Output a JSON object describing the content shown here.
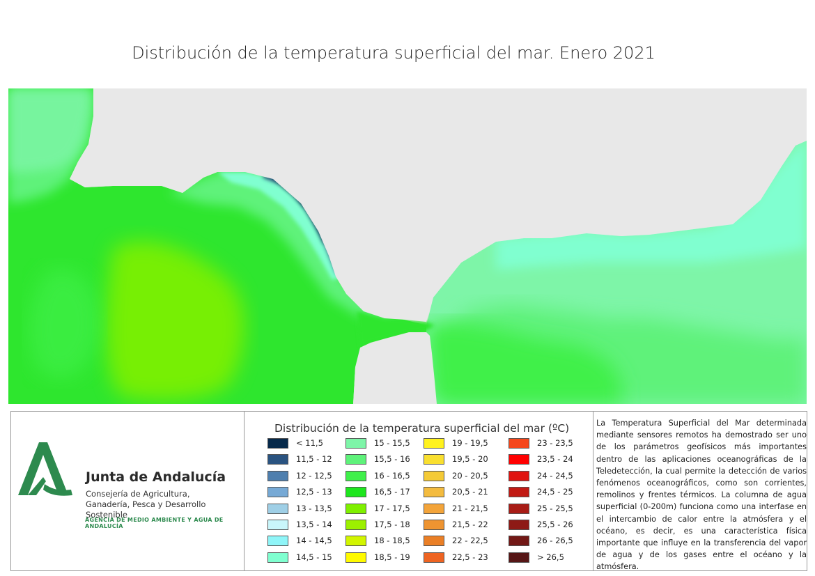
{
  "title": "Distribución de la temperatura superficial del mar. Enero 2021",
  "colors": {
    "land": "#e8e8e8",
    "sea_16_5_17": "#2ee62e",
    "sea_17_17_5": "#7ff000",
    "sea_16_16_5": "#3ff04a",
    "sea_15_5_16": "#5ef27a",
    "sea_15_15_5": "#7ef5a8",
    "sea_14_5_15": "#80ffd0",
    "cold_coast": "#28507a"
  },
  "logo": {
    "icon": "junta-andalucia-logo-icon",
    "org_name": "Junta de Andalucía",
    "department": "Consejería de Agricultura, Ganadería, Pesca y Desarrollo Sostenible",
    "agency": "AGENCIA DE MEDIO AMBIENTE Y AGUA DE ANDALUCÍA"
  },
  "legend": {
    "title": "Distribución de la temperatura superficial del mar (ºC)",
    "columns": [
      [
        {
          "label": "< 11,5",
          "color": "#06294a"
        },
        {
          "label": "11,5 - 12",
          "color": "#2a5380"
        },
        {
          "label": "12 - 12,5",
          "color": "#4f7fae"
        },
        {
          "label": "12,5 - 13",
          "color": "#76a9d5"
        },
        {
          "label": "13 - 13,5",
          "color": "#9fcfe6"
        },
        {
          "label": "13,5 - 14",
          "color": "#c9f6fb"
        },
        {
          "label": "14 - 14,5",
          "color": "#8ff5f8"
        },
        {
          "label": "14,5 - 15",
          "color": "#80ffd0"
        }
      ],
      [
        {
          "label": "15 - 15,5",
          "color": "#7ef5a8"
        },
        {
          "label": "15,5 - 16",
          "color": "#5ef27a"
        },
        {
          "label": "16 - 16,5",
          "color": "#3ff04a"
        },
        {
          "label": "16,5 - 17",
          "color": "#1ee61e"
        },
        {
          "label": "17 - 17,5",
          "color": "#7ff000"
        },
        {
          "label": "17,5 - 18",
          "color": "#9cf000"
        },
        {
          "label": "18 - 18,5",
          "color": "#d2f500"
        },
        {
          "label": "18,5 - 19",
          "color": "#fffa00"
        }
      ],
      [
        {
          "label": "19 - 19,5",
          "color": "#fff21e"
        },
        {
          "label": "19,5 - 20",
          "color": "#f9df2f"
        },
        {
          "label": "20 - 20,5",
          "color": "#f4ca36"
        },
        {
          "label": "20,5 - 21",
          "color": "#f3bb3f"
        },
        {
          "label": "21 - 21,5",
          "color": "#f3a43a"
        },
        {
          "label": "21,5 - 22",
          "color": "#ee9431"
        },
        {
          "label": "22 - 22,5",
          "color": "#ea7f26"
        },
        {
          "label": "22,5 - 23",
          "color": "#ee6422"
        }
      ],
      [
        {
          "label": "23 - 23,5",
          "color": "#f5471c"
        },
        {
          "label": "23,5 - 24",
          "color": "#ff0000"
        },
        {
          "label": "24 - 24,5",
          "color": "#e01410"
        },
        {
          "label": "24,5 - 25",
          "color": "#c11a14"
        },
        {
          "label": "25 - 25,5",
          "color": "#a81c16"
        },
        {
          "label": "25,5 - 26",
          "color": "#8e1a16"
        },
        {
          "label": "26 - 26,5",
          "color": "#721816"
        },
        {
          "label": "> 26,5",
          "color": "#561616"
        }
      ]
    ]
  },
  "description": "La Temperatura Superficial del Mar determinada mediante sensores remotos ha demostrado ser uno de los parámetros geofísicos más importantes dentro de las aplicaciones oceanográficas de la Teledetección, la cual permite la detección de varios fenómenos oceanográficos, como son corrientes, remolinos y frentes térmicos. La columna de agua superficial (0-200m) funciona como una interfase en el intercambio de calor entre la atmósfera y el océano, es decir, es una característica física importante que influye en la transferencia del vapor de agua y de los gases entre el océano y la atmósfera."
}
